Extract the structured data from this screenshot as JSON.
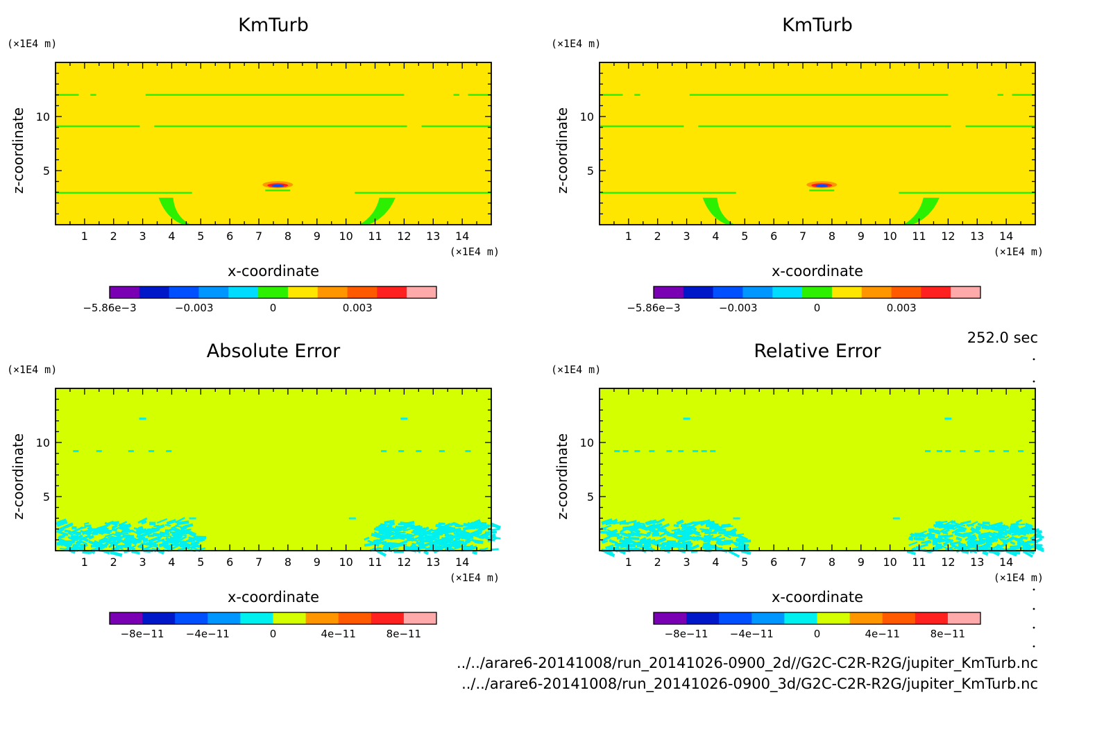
{
  "time_label": "252.0 sec",
  "file_lines": [
    "../../arare6-20141008/run_20141026-0900_2d//G2C-C2R-R2G/jupiter_KmTurb.nc",
    "../../arare6-20141008/run_20141026-0900_3d/G2C-C2R-R2G/jupiter_KmTurb.nc"
  ],
  "panels": [
    {
      "title": "KmTurb",
      "field": "kmturb",
      "background_color": "#ffe600",
      "x_label": "x-coordinate",
      "y_label": "z-coordinate",
      "x_unit": "(×1E4 m)",
      "y_unit": "(×1E4 m)",
      "colorbar_colors": [
        "#7a00b4",
        "#0018c8",
        "#0050ff",
        "#0096ff",
        "#00dcff",
        "#2cf000",
        "#ffe600",
        "#ff9600",
        "#ff5a00",
        "#ff2020",
        "#ffaaaa"
      ],
      "colorbar_labels": [
        "−5.86e−3",
        "−0.003",
        "0",
        "0.003"
      ],
      "colorbar_label_pos": [
        0,
        0.2585,
        0.5,
        0.7585
      ]
    },
    {
      "title": "KmTurb",
      "field": "kmturb",
      "background_color": "#ffe600",
      "x_label": "x-coordinate",
      "y_label": "z-coordinate",
      "x_unit": "(×1E4 m)",
      "y_unit": "(×1E4 m)",
      "colorbar_colors": [
        "#7a00b4",
        "#0018c8",
        "#0050ff",
        "#0096ff",
        "#00dcff",
        "#2cf000",
        "#ffe600",
        "#ff9600",
        "#ff5a00",
        "#ff2020",
        "#ffaaaa"
      ],
      "colorbar_labels": [
        "−5.86e−3",
        "−0.003",
        "0",
        "0.003"
      ],
      "colorbar_label_pos": [
        0,
        0.2585,
        0.5,
        0.7585
      ]
    },
    {
      "title": "Absolute Error",
      "field": "error",
      "background_color": "#d4ff00",
      "x_label": "x-coordinate",
      "y_label": "z-coordinate",
      "x_unit": "(×1E4 m)",
      "y_unit": "(×1E4 m)",
      "colorbar_colors": [
        "#7a00b4",
        "#0018c8",
        "#0050ff",
        "#0096ff",
        "#00f0f0",
        "#d4ff00",
        "#ff9600",
        "#ff5a00",
        "#ff2020",
        "#ffaaaa"
      ],
      "colorbar_labels": [
        "−8e−11",
        "−4e−11",
        "0",
        "4e−11",
        "8e−11"
      ],
      "colorbar_label_pos": [
        0.1,
        0.3,
        0.5,
        0.7,
        0.9
      ]
    },
    {
      "title": "Relative Error",
      "field": "error",
      "background_color": "#d4ff00",
      "x_label": "x-coordinate",
      "y_label": "z-coordinate",
      "x_unit": "(×1E4 m)",
      "y_unit": "(×1E4 m)",
      "colorbar_colors": [
        "#7a00b4",
        "#0018c8",
        "#0050ff",
        "#0096ff",
        "#00f0f0",
        "#d4ff00",
        "#ff9600",
        "#ff5a00",
        "#ff2020",
        "#ffaaaa"
      ],
      "colorbar_labels": [
        "−8e−11",
        "−4e−11",
        "0",
        "4e−11",
        "8e−11"
      ],
      "colorbar_label_pos": [
        0.1,
        0.3,
        0.5,
        0.7,
        0.9
      ]
    }
  ],
  "chart_data": {
    "type": "heatmap",
    "x_range": [
      0,
      15
    ],
    "y_range": [
      0,
      15
    ],
    "x_ticks": [
      1,
      2,
      3,
      4,
      5,
      6,
      7,
      8,
      9,
      10,
      11,
      12,
      13,
      14
    ],
    "y_ticks": [
      5,
      10
    ],
    "x_tick_labels": [
      "1",
      "2",
      "3",
      "4",
      "5",
      "6",
      "7",
      "8",
      "9",
      "10",
      "11",
      "12",
      "13",
      "14"
    ],
    "y_tick_labels": [
      "5",
      "10"
    ],
    "grid": false
  }
}
